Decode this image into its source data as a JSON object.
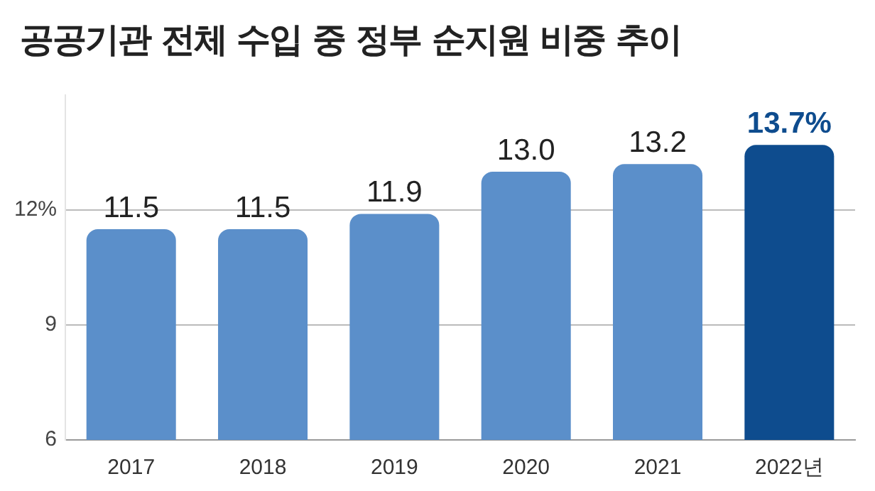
{
  "chart_data": {
    "type": "bar",
    "title": "공공기관 전체 수입 중 정부 순지원 비중 추이",
    "categories": [
      "2017",
      "2018",
      "2019",
      "2020",
      "2021",
      "2022년"
    ],
    "values": [
      11.5,
      11.5,
      11.9,
      13.0,
      13.2,
      13.7
    ],
    "colors": [
      "#5b8fca",
      "#5b8fca",
      "#5b8fca",
      "#5b8fca",
      "#5b8fca",
      "#0e4c8e"
    ],
    "value_labels": [
      "11.5",
      "11.5",
      "11.9",
      "13.0",
      "13.2",
      "13.7%"
    ],
    "ylim": [
      6,
      15
    ],
    "yticks": [
      {
        "value": 6,
        "label": "6"
      },
      {
        "value": 9,
        "label": "9"
      },
      {
        "value": 12,
        "label": "12%"
      }
    ],
    "grid": "y"
  }
}
